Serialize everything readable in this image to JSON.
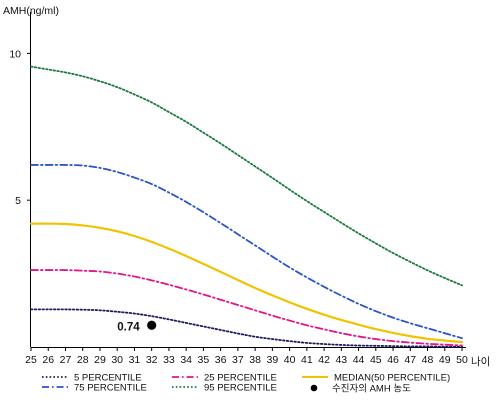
{
  "chart_data": {
    "type": "line",
    "title": "",
    "ylabel": "AMH(ng/ml)",
    "xlabel": "나이",
    "xlim": [
      25,
      50
    ],
    "ylim": [
      0,
      11
    ],
    "yticks": [
      5,
      10
    ],
    "x": [
      25,
      26,
      27,
      28,
      29,
      30,
      31,
      32,
      33,
      34,
      35,
      36,
      37,
      38,
      39,
      40,
      41,
      42,
      43,
      44,
      45,
      46,
      47,
      48,
      49,
      50
    ],
    "grid": false,
    "legend_position": "bottom",
    "series": [
      {
        "name": "5 PERCENTILE",
        "color": "#1a1a60",
        "dash": "dot",
        "values": [
          1.28,
          1.28,
          1.28,
          1.27,
          1.25,
          1.2,
          1.14,
          1.05,
          0.94,
          0.82,
          0.7,
          0.58,
          0.46,
          0.35,
          0.27,
          0.2,
          0.14,
          0.1,
          0.07,
          0.05,
          0.04,
          0.03,
          0.02,
          0.02,
          0.01,
          0.01
        ]
      },
      {
        "name": "25 PERCENTILE",
        "color": "#e0148c",
        "dash": "dashdot",
        "values": [
          2.62,
          2.62,
          2.62,
          2.6,
          2.57,
          2.5,
          2.4,
          2.27,
          2.12,
          1.96,
          1.79,
          1.61,
          1.43,
          1.25,
          1.07,
          0.9,
          0.74,
          0.6,
          0.47,
          0.36,
          0.27,
          0.2,
          0.15,
          0.11,
          0.08,
          0.05
        ]
      },
      {
        "name": "MEDIAN(50 PERCENTILE)",
        "color": "#f2c200",
        "dash": "solid",
        "values": [
          4.2,
          4.2,
          4.19,
          4.14,
          4.06,
          3.94,
          3.78,
          3.58,
          3.35,
          3.1,
          2.83,
          2.56,
          2.28,
          2.01,
          1.76,
          1.52,
          1.3,
          1.1,
          0.92,
          0.76,
          0.61,
          0.48,
          0.37,
          0.28,
          0.22,
          0.17
        ]
      },
      {
        "name": "75 PERCENTILE",
        "color": "#2a55c8",
        "dash": "dashdot",
        "values": [
          6.2,
          6.2,
          6.2,
          6.18,
          6.1,
          5.96,
          5.77,
          5.55,
          5.26,
          4.94,
          4.59,
          4.22,
          3.84,
          3.46,
          3.08,
          2.71,
          2.37,
          2.05,
          1.75,
          1.47,
          1.22,
          1.0,
          0.81,
          0.64,
          0.47,
          0.3
        ]
      },
      {
        "name": "95 PERCENTILE",
        "color": "#1a7a3c",
        "dash": "dot",
        "values": [
          9.55,
          9.45,
          9.35,
          9.22,
          9.05,
          8.85,
          8.6,
          8.33,
          8.0,
          7.67,
          7.3,
          6.93,
          6.54,
          6.15,
          5.76,
          5.36,
          4.97,
          4.6,
          4.23,
          3.87,
          3.53,
          3.2,
          2.9,
          2.61,
          2.35,
          2.1
        ]
      }
    ],
    "marker": {
      "name": "수진자의 AMH 농도",
      "x": 32,
      "y": 0.74,
      "label": "0.74",
      "color": "#000000"
    }
  }
}
